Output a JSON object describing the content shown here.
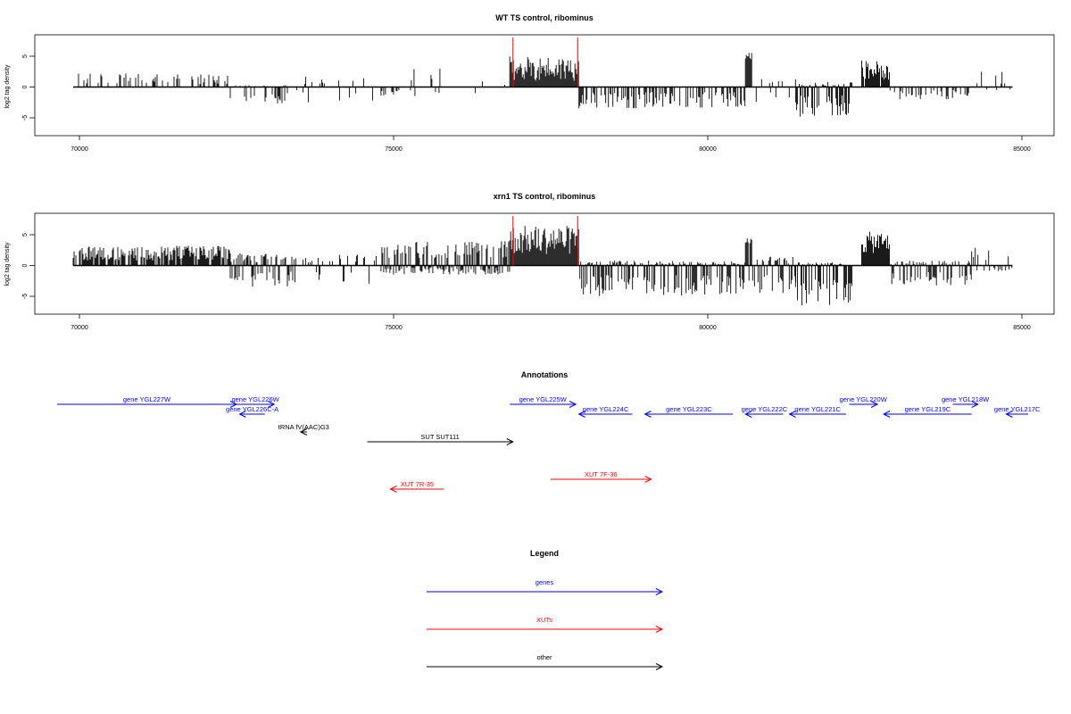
{
  "chart_data": [
    {
      "type": "bar",
      "title": "WT TS control, ribominus",
      "ylabel": "log2 tag density",
      "xlim": [
        69800,
        85050
      ],
      "ylim": [
        -8,
        8
      ],
      "x_ticks": [
        70000,
        75000,
        80000,
        85000
      ],
      "y_ticks": [
        -5,
        0,
        5
      ],
      "red_markers": [
        76900,
        77930
      ],
      "bins": [
        {
          "x0": 69900,
          "x1": 72400,
          "pos": [
            0.5,
            2.2
          ],
          "neg": 0,
          "density": 0.3
        },
        {
          "x0": 72400,
          "x1": 73400,
          "pos": [
            0,
            0.3
          ],
          "neg": [
            0.8,
            3.2
          ],
          "density": 0.35
        },
        {
          "x0": 73400,
          "x1": 74800,
          "pos": [
            0.4,
            1.8
          ],
          "neg": [
            0.5,
            2.5
          ],
          "density": 0.12
        },
        {
          "x0": 74800,
          "x1": 76000,
          "pos": [
            0.8,
            3.5
          ],
          "neg": [
            0.4,
            1.5
          ],
          "density": 0.35
        },
        {
          "x0": 76000,
          "x1": 76850,
          "pos": [
            0.3,
            1.2
          ],
          "neg": [
            0.3,
            1.3
          ],
          "density": 0.1
        },
        {
          "x0": 76850,
          "x1": 77950,
          "pos": [
            1.0,
            5.0
          ],
          "neg": 0,
          "density": 1.0
        },
        {
          "x0": 77950,
          "x1": 80600,
          "pos": 0,
          "neg": [
            0.8,
            3.5
          ],
          "density": 0.45
        },
        {
          "x0": 80600,
          "x1": 80700,
          "pos": [
            4.5,
            5.6
          ],
          "neg": 0,
          "density": 1.0
        },
        {
          "x0": 80700,
          "x1": 81400,
          "pos": [
            0.3,
            1.3
          ],
          "neg": [
            0.8,
            2.5
          ],
          "density": 0.25
        },
        {
          "x0": 81400,
          "x1": 82300,
          "pos": [
            0,
            0.8
          ],
          "neg": [
            1.2,
            4.8
          ],
          "density": 0.85
        },
        {
          "x0": 82450,
          "x1": 82900,
          "pos": [
            1.2,
            4.3
          ],
          "neg": 0,
          "density": 0.9
        },
        {
          "x0": 82900,
          "x1": 84200,
          "pos": 0,
          "neg": [
            0.5,
            2.0
          ],
          "density": 0.3
        },
        {
          "x0": 84200,
          "x1": 84850,
          "pos": [
            0.5,
            2.5
          ],
          "neg": [
            0.2,
            0.8
          ],
          "density": 0.2
        }
      ]
    },
    {
      "type": "bar",
      "title": "xrn1 TS control, ribominus",
      "ylabel": "log2 tag density",
      "xlim": [
        69800,
        85050
      ],
      "ylim": [
        -8,
        8
      ],
      "x_ticks": [
        70000,
        75000,
        80000,
        85000
      ],
      "y_ticks": [
        -5,
        0,
        5
      ],
      "red_markers": [
        76900,
        77930
      ],
      "bins": [
        {
          "x0": 69900,
          "x1": 72400,
          "pos": [
            0.8,
            3.2
          ],
          "neg": 0,
          "density": 0.8
        },
        {
          "x0": 72400,
          "x1": 73400,
          "pos": [
            0.5,
            2.0
          ],
          "neg": [
            1.0,
            3.5
          ],
          "density": 0.7
        },
        {
          "x0": 73400,
          "x1": 74800,
          "pos": [
            0.5,
            1.8
          ],
          "neg": [
            0.8,
            3.0
          ],
          "density": 0.35
        },
        {
          "x0": 74800,
          "x1": 76850,
          "pos": [
            1.2,
            4.0
          ],
          "neg": [
            0.3,
            1.5
          ],
          "density": 0.95
        },
        {
          "x0": 76850,
          "x1": 77950,
          "pos": [
            1.8,
            6.5
          ],
          "neg": 0,
          "density": 1.0
        },
        {
          "x0": 77950,
          "x1": 80600,
          "pos": [
            0,
            0.8
          ],
          "neg": [
            1.5,
            5.0
          ],
          "density": 0.9
        },
        {
          "x0": 80600,
          "x1": 80700,
          "pos": [
            3.5,
            4.5
          ],
          "neg": [
            2.0,
            4.0
          ],
          "density": 1.0
        },
        {
          "x0": 80700,
          "x1": 81400,
          "pos": [
            0.3,
            1.5
          ],
          "neg": [
            1.5,
            4.5
          ],
          "density": 0.7
        },
        {
          "x0": 81400,
          "x1": 82300,
          "pos": [
            0,
            0.5
          ],
          "neg": [
            2.0,
            6.5
          ],
          "density": 1.0
        },
        {
          "x0": 82450,
          "x1": 82900,
          "pos": [
            2.0,
            5.5
          ],
          "neg": 0,
          "density": 1.0
        },
        {
          "x0": 82900,
          "x1": 84200,
          "pos": [
            0,
            0.8
          ],
          "neg": [
            1.0,
            3.2
          ],
          "density": 0.75
        },
        {
          "x0": 84200,
          "x1": 84850,
          "pos": [
            0.8,
            3.0
          ],
          "neg": [
            0.3,
            1.0
          ],
          "density": 0.4
        }
      ]
    }
  ],
  "annotations": {
    "title": "Annotations",
    "features": [
      {
        "label": "gene YGL227W",
        "start": 69600,
        "end": 72500,
        "strand": "+",
        "color": "#0000ff",
        "row": 0
      },
      {
        "label": "gene YGL226W",
        "start": 72500,
        "end": 73100,
        "strand": "+",
        "color": "#0000ff",
        "row": 0
      },
      {
        "label": "gene YGL226C-A",
        "start": 72550,
        "end": 72950,
        "strand": "-",
        "color": "#0000ff",
        "row": 1
      },
      {
        "label": "tRNA fV(AAC)G3",
        "start": 73520,
        "end": 73620,
        "strand": "-",
        "color": "#000000",
        "row": 2
      },
      {
        "label": "SUT SUT111",
        "start": 74580,
        "end": 76900,
        "strand": "+",
        "color": "#000000",
        "row": 3
      },
      {
        "label": "gene YGL225W",
        "start": 76850,
        "end": 77900,
        "strand": "+",
        "color": "#0000ff",
        "row": 0
      },
      {
        "label": "gene YGL224C",
        "start": 77950,
        "end": 78800,
        "strand": "-",
        "color": "#0000ff",
        "row": 1
      },
      {
        "label": "gene YGL223C",
        "start": 79000,
        "end": 80400,
        "strand": "-",
        "color": "#0000ff",
        "row": 1
      },
      {
        "label": "gene YGL222C",
        "start": 80600,
        "end": 81200,
        "strand": "-",
        "color": "#0000ff",
        "row": 1
      },
      {
        "label": "gene YGL221C",
        "start": 81300,
        "end": 82200,
        "strand": "-",
        "color": "#0000ff",
        "row": 1
      },
      {
        "label": "gene YGL220W",
        "start": 82250,
        "end": 82700,
        "strand": "+",
        "color": "#0000ff",
        "row": 0
      },
      {
        "label": "gene YGL219C",
        "start": 82800,
        "end": 84200,
        "strand": "-",
        "color": "#0000ff",
        "row": 1
      },
      {
        "label": "gene YGL218W",
        "start": 83900,
        "end": 84300,
        "strand": "+",
        "color": "#0000ff",
        "row": 0
      },
      {
        "label": "gene YGL217C",
        "start": 84750,
        "end": 85100,
        "strand": "-",
        "color": "#0000ff",
        "row": 1
      },
      {
        "label": "XUT 7R-35",
        "start": 74950,
        "end": 75800,
        "strand": "-",
        "color": "#ff0000",
        "row": 5
      },
      {
        "label": "XUT 7F-36",
        "start": 77500,
        "end": 79100,
        "strand": "+",
        "color": "#ff0000",
        "row": 4
      }
    ]
  },
  "legend": {
    "title": "Legend",
    "items": [
      {
        "label": "genes",
        "color": "#0000ff"
      },
      {
        "label": "XUTs",
        "color": "#ff0000"
      },
      {
        "label": "other",
        "color": "#000000"
      }
    ]
  }
}
